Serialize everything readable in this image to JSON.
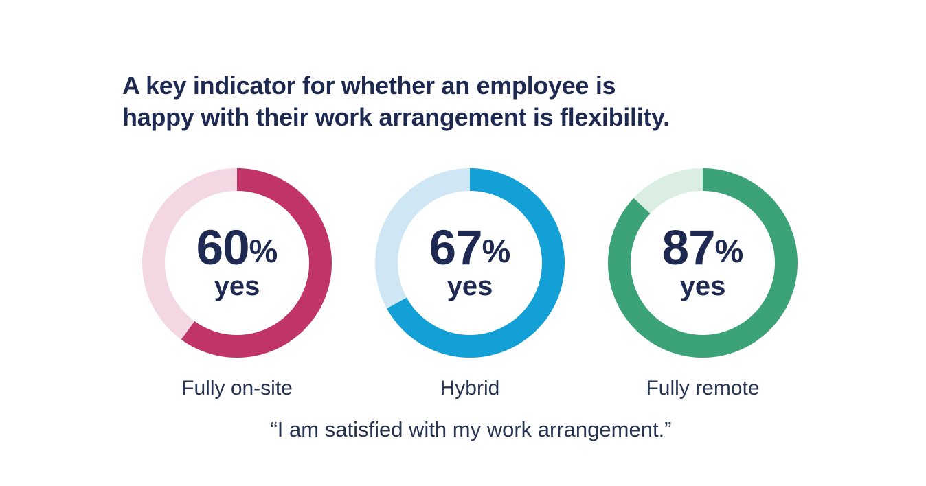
{
  "header": {
    "title_lines": [
      "A key indicator for whether an employee is",
      "happy with their work arrangement is flexibility."
    ],
    "title_color": "#1e2a52"
  },
  "chart_data": {
    "type": "pie",
    "variant": "donut",
    "title": "A key indicator for whether an employee is happy with their work arrangement is flexibility.",
    "footnote": "“I am satisfied with my work arrangement.”",
    "unit": "%",
    "legend_position": "below-each-donut",
    "categories": [
      "Fully on-site",
      "Hybrid",
      "Fully remote"
    ],
    "values": [
      60,
      67,
      87
    ],
    "series": [
      {
        "label": "Fully on-site",
        "value": 60,
        "display": "60",
        "suffix": "%",
        "answer": "yes",
        "color": "#c13467",
        "track_color": "#f3d7e2"
      },
      {
        "label": "Hybrid",
        "value": 67,
        "display": "67",
        "suffix": "%",
        "answer": "yes",
        "color": "#12a0d7",
        "track_color": "#cfe7f4"
      },
      {
        "label": "Fully remote",
        "value": 87,
        "display": "87",
        "suffix": "%",
        "answer": "yes",
        "color": "#3ba377",
        "track_color": "#daeee3"
      }
    ]
  }
}
